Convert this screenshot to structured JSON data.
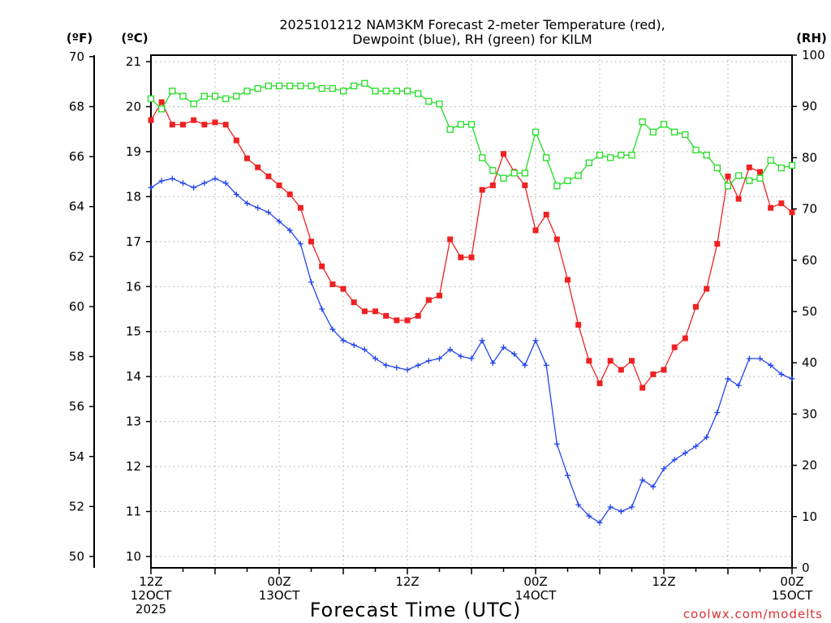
{
  "title_line1": "2025101212 NAM3KM Forecast 2-meter Temperature (red),",
  "title_line2": "Dewpoint (blue), RH (green) for KILM",
  "credit": "coolwx.com/modelts",
  "chart_data": {
    "type": "line",
    "title": "2025101212 NAM3KM Forecast 2-meter Temperature (red), Dewpoint (blue), RH (green) for KILM",
    "xlabel": "Forecast Time (UTC)",
    "x": {
      "unit": "forecast hour",
      "range": [
        0,
        60
      ],
      "step": 1,
      "ticks": [
        {
          "hour": 0,
          "lines": [
            "12Z",
            "12OCT",
            "2025"
          ]
        },
        {
          "hour": 12,
          "lines": [
            "00Z",
            "13OCT"
          ]
        },
        {
          "hour": 24,
          "lines": [
            "12Z"
          ]
        },
        {
          "hour": 36,
          "lines": [
            "00Z",
            "14OCT"
          ]
        },
        {
          "hour": 48,
          "lines": [
            "12Z"
          ]
        },
        {
          "hour": 60,
          "lines": [
            "00Z",
            "15OCT"
          ]
        }
      ]
    },
    "axes": {
      "fahrenheit": {
        "label": "(ºF)",
        "ylim": [
          50,
          70
        ],
        "ticks": [
          50,
          52,
          54,
          56,
          58,
          60,
          62,
          64,
          66,
          68,
          70
        ]
      },
      "celsius": {
        "label": "(ºC)",
        "ylim": [
          10,
          21
        ],
        "ticks": [
          10,
          11,
          12,
          13,
          14,
          15,
          16,
          17,
          18,
          19,
          20,
          21
        ]
      },
      "rh": {
        "label": "(RH)",
        "ylim": [
          0,
          100
        ],
        "ticks": [
          0,
          10,
          20,
          30,
          40,
          50,
          60,
          70,
          80,
          90,
          100
        ]
      }
    },
    "grid": true,
    "series": [
      {
        "name": "2-meter Temperature",
        "unit": "ºC",
        "axis": "celsius",
        "color": "#ee2222",
        "marker": "filled-square",
        "values": [
          19.7,
          20.1,
          19.6,
          19.6,
          19.7,
          19.6,
          19.65,
          19.6,
          19.25,
          18.85,
          18.65,
          18.45,
          18.25,
          18.05,
          17.75,
          17.0,
          16.45,
          16.05,
          15.95,
          15.65,
          15.45,
          15.45,
          15.35,
          15.25,
          15.25,
          15.35,
          15.7,
          15.8,
          17.05,
          16.65,
          16.65,
          18.15,
          18.25,
          18.95,
          18.55,
          18.25,
          17.25,
          17.6,
          17.05,
          16.15,
          15.15,
          14.35,
          13.85,
          14.35,
          14.15,
          14.35,
          13.75,
          14.05,
          14.15,
          14.65,
          14.85,
          15.55,
          15.95,
          16.95,
          18.45,
          17.95,
          18.65,
          18.55,
          17.75,
          17.85,
          17.65
        ]
      },
      {
        "name": "Dewpoint",
        "unit": "ºC",
        "axis": "celsius",
        "color": "#2244ee",
        "marker": "plus",
        "values": [
          18.2,
          18.35,
          18.4,
          18.3,
          18.2,
          18.3,
          18.4,
          18.3,
          18.05,
          17.85,
          17.75,
          17.65,
          17.45,
          17.25,
          16.95,
          16.1,
          15.5,
          15.05,
          14.8,
          14.7,
          14.6,
          14.4,
          14.25,
          14.2,
          14.15,
          14.25,
          14.35,
          14.4,
          14.6,
          14.45,
          14.4,
          14.8,
          14.3,
          14.65,
          14.5,
          14.25,
          14.8,
          14.25,
          12.5,
          11.8,
          11.15,
          10.9,
          10.75,
          11.1,
          11.0,
          11.1,
          11.7,
          11.55,
          11.95,
          12.15,
          12.3,
          12.45,
          12.65,
          13.2,
          13.95,
          13.8,
          14.4,
          14.4,
          14.25,
          14.05,
          13.95
        ]
      },
      {
        "name": "RH",
        "unit": "%",
        "axis": "rh",
        "color": "#22dd22",
        "marker": "open-square",
        "values": [
          91.5,
          89.5,
          93.0,
          92.0,
          90.5,
          92.0,
          92.0,
          91.5,
          92.0,
          93.0,
          93.5,
          94.0,
          94.0,
          94.0,
          94.0,
          94.0,
          93.5,
          93.5,
          93.0,
          94.0,
          94.5,
          93.0,
          93.0,
          93.0,
          93.0,
          92.5,
          91.0,
          90.5,
          85.5,
          86.5,
          86.5,
          80.0,
          77.5,
          76.0,
          77.0,
          77.0,
          85.0,
          80.0,
          74.5,
          75.5,
          76.5,
          79.0,
          80.5,
          80.0,
          80.5,
          80.5,
          87.0,
          85.0,
          86.5,
          85.0,
          84.5,
          81.5,
          80.5,
          78.0,
          74.5,
          76.5,
          75.5,
          76.0,
          79.5,
          78.0,
          78.5
        ]
      }
    ]
  }
}
